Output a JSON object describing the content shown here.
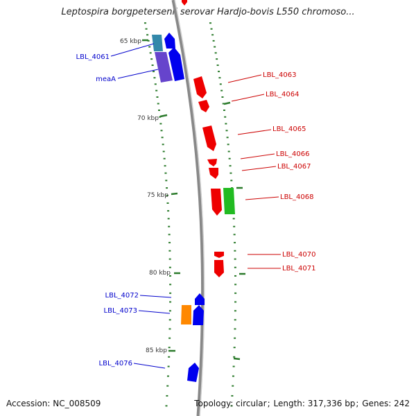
{
  "title": "Leptospira borgpetersenii serovar Hardjo-bovis L550 chromoso...",
  "footer": {
    "accession_label": "Accession:",
    "accession": "NC_008509",
    "topology_label": "Topology:",
    "topology": "circular",
    "length_label": "Length:",
    "length": "317,336 bp",
    "genes_label": "Genes:",
    "genes": "242"
  },
  "ticks": [
    "65 kbp",
    "70 kbp",
    "75 kbp",
    "80 kbp",
    "85 kbp"
  ],
  "genes_left": [
    "LBL_4061",
    "meaA",
    "LBL_4072",
    "LBL_4073",
    "LBL_4076"
  ],
  "genes_right": [
    "LBL_4063",
    "LBL_4064",
    "LBL_4065",
    "LBL_4066",
    "LBL_4067",
    "LBL_4068",
    "LBL_4070",
    "LBL_4071"
  ],
  "colors": {
    "forward": "#0000ee",
    "reverse": "#ee0000",
    "rna": "#22bb22",
    "other": "#ff8800",
    "purple": "#6644cc",
    "teal": "#3388aa",
    "ticks": "#2a7a2a",
    "backbone": "#888888",
    "left_label": "#0000cc",
    "right_label": "#cc0000"
  }
}
